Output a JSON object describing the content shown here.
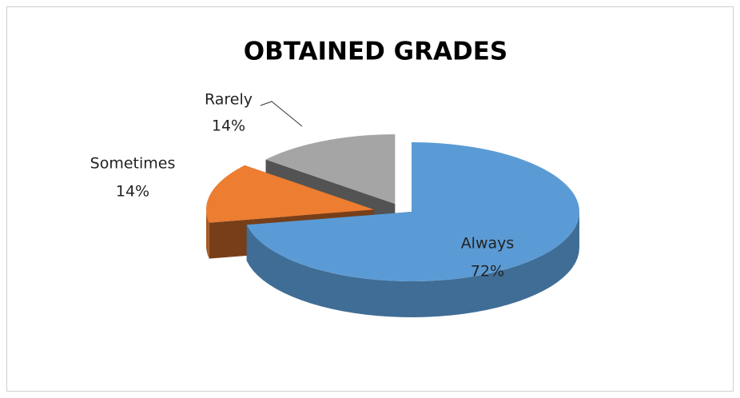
{
  "chart_data": {
    "type": "pie",
    "title": "OBTAINED GRADES",
    "categories": [
      "Always",
      "Sometimes",
      "Rarely"
    ],
    "values": [
      72,
      14,
      14
    ],
    "value_labels": [
      "72%",
      "14%",
      "14%"
    ],
    "colors": [
      "#5b9bd5",
      "#ed7d31",
      "#a5a5a5"
    ]
  }
}
